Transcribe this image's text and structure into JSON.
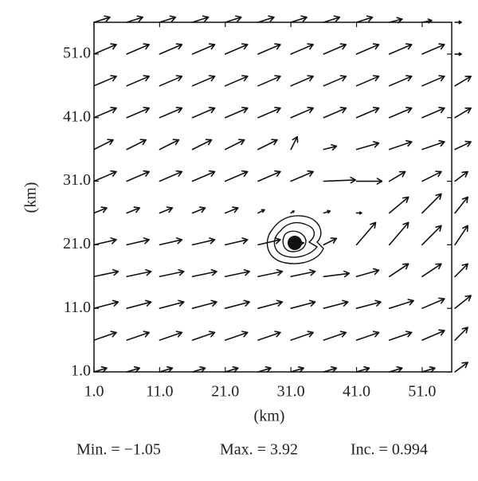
{
  "chart_data": {
    "type": "quiver",
    "xlabel": "(km)",
    "ylabel": "(km)",
    "footer": [
      "Min. = −1.05",
      "Max. = 3.92",
      "Inc. = 0.994"
    ],
    "xlim": [
      1,
      55.5
    ],
    "ylim": [
      1,
      56
    ],
    "xticks": [
      {
        "value": 1,
        "label": "1.0"
      },
      {
        "value": 11,
        "label": "11.0"
      },
      {
        "value": 21,
        "label": "21.0"
      },
      {
        "value": 31,
        "label": "31.0"
      },
      {
        "value": 41,
        "label": "41.0"
      },
      {
        "value": 51,
        "label": "51.0"
      }
    ],
    "yticks": [
      {
        "value": 1,
        "label": "1.0"
      },
      {
        "value": 11,
        "label": "11.0"
      },
      {
        "value": 21,
        "label": "21.0"
      },
      {
        "value": 31,
        "label": "31.0"
      },
      {
        "value": 41,
        "label": "41.0"
      },
      {
        "value": 51,
        "label": "51.0"
      }
    ],
    "x": [
      1,
      6,
      11,
      16,
      21,
      26,
      31,
      36,
      41,
      46,
      51,
      56
    ],
    "y": [
      1,
      6,
      11,
      16,
      21,
      26,
      31,
      36,
      41,
      46,
      51,
      56
    ],
    "u": [
      [
        2,
        2,
        2,
        2,
        2,
        2,
        2,
        2,
        2,
        2,
        2,
        2
      ],
      [
        3.5,
        3.5,
        3.5,
        3.5,
        3.5,
        3.5,
        3.5,
        3.5,
        3.5,
        3.5,
        3.5,
        2
      ],
      [
        3.8,
        3.8,
        3.8,
        3.8,
        3.8,
        3.8,
        3.8,
        3.8,
        3.8,
        3.8,
        3.5,
        2.5
      ],
      [
        3.8,
        3.8,
        3.8,
        3.8,
        3.8,
        3.8,
        3.8,
        4,
        3.5,
        3,
        3,
        2
      ],
      [
        3.5,
        3.5,
        3.5,
        3.5,
        3.5,
        3.5,
        2,
        2,
        3,
        3,
        3,
        2
      ],
      [
        2,
        2,
        2,
        2,
        2,
        1,
        0.5,
        1,
        0.8,
        3,
        3,
        2
      ],
      [
        3.5,
        3.5,
        3.5,
        3.5,
        3.5,
        3.5,
        3.5,
        5,
        4,
        2.5,
        3,
        2
      ],
      [
        3,
        3,
        3,
        3,
        3,
        3,
        1,
        2,
        3.5,
        3.5,
        3.5,
        2.5
      ],
      [
        3.5,
        3.5,
        3.5,
        3.5,
        3.5,
        3.5,
        3.5,
        3.5,
        3.5,
        3.5,
        3.5,
        2.5
      ],
      [
        3.5,
        3.5,
        3.5,
        3.5,
        3.5,
        3.5,
        3.5,
        3.5,
        3.5,
        3.5,
        3.5,
        2.5
      ],
      [
        3.5,
        3.5,
        3.5,
        3.5,
        3.5,
        3.5,
        3.5,
        3.5,
        3.5,
        3.5,
        3.5,
        1
      ],
      [
        2.5,
        2.5,
        2.5,
        2.5,
        2.5,
        2.5,
        2.5,
        2.5,
        2.5,
        2,
        1.5,
        1
      ]
    ],
    "v": [
      [
        0.6,
        0.6,
        0.6,
        0.6,
        0.6,
        0.6,
        0.6,
        0.6,
        0.6,
        0.6,
        0.6,
        1.5
      ],
      [
        1.2,
        1.2,
        1.2,
        1.2,
        1.2,
        1.2,
        1.2,
        1.2,
        1.2,
        1.2,
        1.5,
        2
      ],
      [
        1,
        1,
        1,
        1,
        1,
        1,
        1,
        1,
        1,
        1.2,
        1.5,
        2
      ],
      [
        0.8,
        0.8,
        0.8,
        0.8,
        0.8,
        0.8,
        0.8,
        0.5,
        1,
        2,
        2,
        2
      ],
      [
        0.8,
        0.8,
        0.8,
        0.8,
        0.8,
        0.8,
        0.3,
        1,
        3.5,
        3.5,
        3,
        3
      ],
      [
        0.8,
        0.8,
        0.8,
        0.8,
        0.8,
        0.5,
        0.3,
        0.3,
        0,
        2.5,
        3,
        2.5
      ],
      [
        1.5,
        1.5,
        1.5,
        1.5,
        1.5,
        1.5,
        1.5,
        0.2,
        0,
        1.5,
        1.5,
        1.5
      ],
      [
        1.5,
        1.5,
        1.5,
        1.5,
        1.5,
        1.5,
        2,
        0.5,
        1,
        1.2,
        1.2,
        1.2
      ],
      [
        1.5,
        1.5,
        1.5,
        1.5,
        1.5,
        1.5,
        1.5,
        1.5,
        1.5,
        1.5,
        1.5,
        1.5
      ],
      [
        1.5,
        1.5,
        1.5,
        1.5,
        1.5,
        1.5,
        1.5,
        1.5,
        1.5,
        1.5,
        1.5,
        1.5
      ],
      [
        1.5,
        1.5,
        1.5,
        1.5,
        1.5,
        1.5,
        1.5,
        1.5,
        1.5,
        1.5,
        1.5,
        0
      ],
      [
        0.8,
        0.8,
        0.8,
        0.8,
        0.8,
        0.8,
        0.8,
        0.8,
        0.8,
        0.5,
        0.3,
        0
      ]
    ]
  }
}
